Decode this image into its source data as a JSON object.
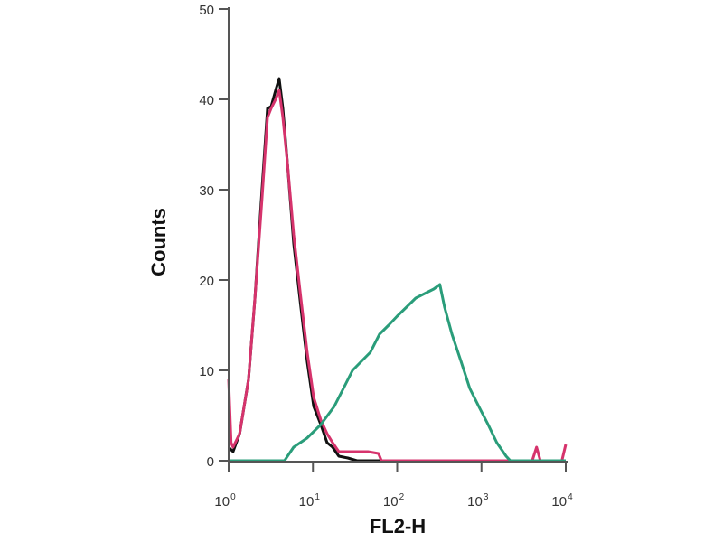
{
  "chart_data": {
    "type": "line",
    "title": "",
    "xlabel": "FL2-H",
    "ylabel": "Counts",
    "xscale": "log",
    "xlim": [
      1,
      10000
    ],
    "ylim": [
      0,
      50
    ],
    "grid": false,
    "x_ticks": [
      {
        "value": 1,
        "base": "10",
        "exp": "0"
      },
      {
        "value": 10,
        "base": "10",
        "exp": "1"
      },
      {
        "value": 100,
        "base": "10",
        "exp": "2"
      },
      {
        "value": 1000,
        "base": "10",
        "exp": "3"
      },
      {
        "value": 10000,
        "base": "10",
        "exp": "4"
      }
    ],
    "y_ticks": [
      0,
      10,
      20,
      30,
      40,
      50
    ],
    "series": [
      {
        "color": "#111111",
        "x": [
          1,
          1.13,
          1.35,
          1.72,
          2.05,
          2.49,
          2.89,
          3.19,
          3.61,
          3.98,
          4.4,
          4.98,
          5.92,
          7.19,
          8.55,
          10.2,
          12.4,
          14.7,
          17.1,
          20.3,
          26,
          33.3,
          10000
        ],
        "y": [
          1.5,
          1,
          3,
          9,
          18,
          30,
          39,
          39.2,
          41,
          42.3,
          39,
          33,
          24,
          17,
          11,
          6,
          4,
          2,
          1.5,
          0.5,
          0.3,
          0,
          0
        ]
      },
      {
        "color": "#d6336c",
        "x": [
          1,
          1.07,
          1.13,
          1.35,
          1.72,
          2.05,
          2.49,
          2.89,
          3.19,
          3.61,
          3.98,
          4.4,
          4.98,
          5.92,
          7.19,
          8.55,
          10.2,
          12.4,
          14.7,
          17.1,
          20.3,
          30,
          45,
          60,
          65,
          4000,
          4500,
          5000,
          9000,
          10000
        ],
        "y": [
          9,
          2,
          1.5,
          3,
          9,
          18,
          29,
          38,
          39,
          40,
          41,
          38,
          33,
          25,
          18,
          12,
          7,
          4.5,
          3,
          2,
          1,
          1,
          1,
          0.8,
          0,
          0,
          1.5,
          0,
          0,
          1.8
        ]
      },
      {
        "color": "#2a9d7a",
        "x": [
          1,
          4.6,
          5.9,
          8.5,
          12.4,
          17.9,
          23,
          29.5,
          37.6,
          48,
          61.7,
          79,
          100,
          129,
          166,
          212,
          271,
          321,
          365,
          447,
          571,
          727,
          930,
          1200,
          1520,
          1960,
          2200,
          10000
        ],
        "y": [
          0,
          0,
          1.5,
          2.5,
          4,
          6,
          8,
          10,
          11,
          12,
          14,
          15,
          16,
          17,
          18,
          18.5,
          19,
          19.5,
          17,
          14,
          11,
          8,
          6,
          4,
          2,
          0.5,
          0,
          0
        ]
      }
    ]
  }
}
